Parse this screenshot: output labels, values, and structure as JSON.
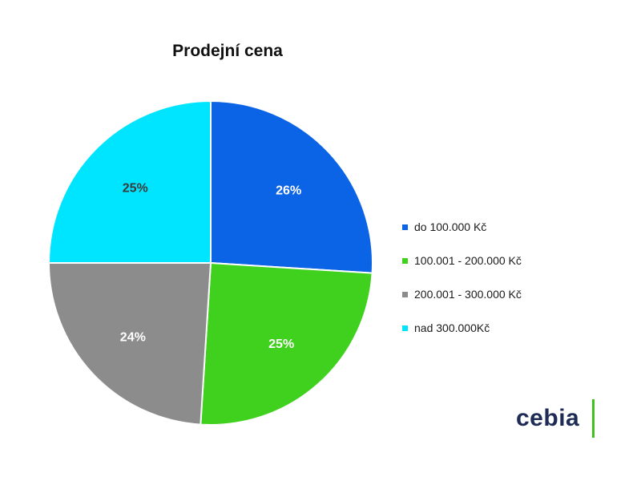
{
  "colors": {
    "do_100000": "#0b63e5",
    "s100001_200000": "#3fd11e",
    "s200001_300000": "#8c8c8c",
    "nad_300000": "#00e5ff",
    "brand_text": "#1f2b57",
    "brand_bar": "#3fc21e"
  },
  "chart_data": {
    "type": "pie",
    "title": "Prodejní cena",
    "categories": [
      "do 100.000 Kč",
      "100.001 - 200.000 Kč",
      "200.001 - 300.000 Kč",
      "nad 300.000Kč"
    ],
    "values": [
      26,
      25,
      24,
      25
    ],
    "data_labels": [
      "26%",
      "25%",
      "24%",
      "25%"
    ],
    "colors": [
      "#0b63e5",
      "#3fd11e",
      "#8c8c8c",
      "#00e5ff"
    ],
    "label_colors": [
      "#ffffff",
      "#ffffff",
      "#ffffff",
      "#3a3a3a"
    ],
    "start_angle": "12 o'clock",
    "direction": "clockwise",
    "legend_placement": "right"
  },
  "logo": {
    "text": "cebia"
  }
}
